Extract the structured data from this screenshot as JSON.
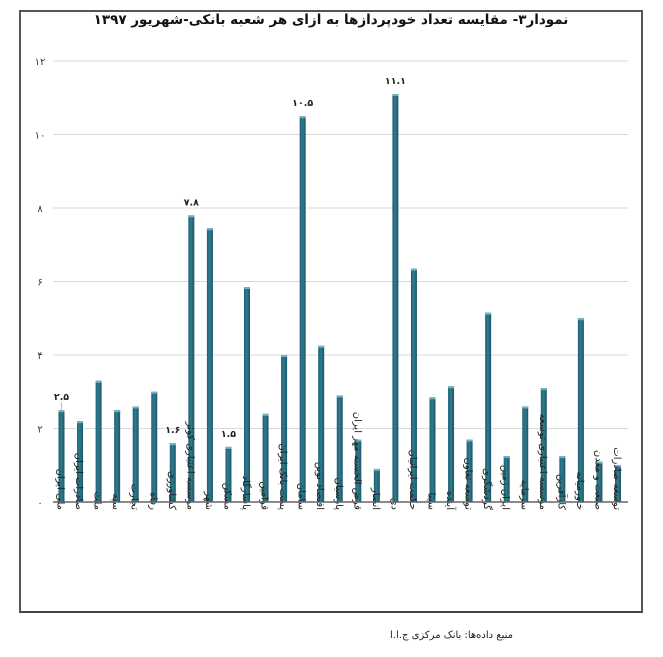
{
  "chart_data": {
    "type": "bar",
    "title": "نمودار۳- مقایسه تعداد خودپردازها به ازای هر شعبه بانکی-شهریور ۱۳۹۷",
    "xlabel": "",
    "ylabel": "",
    "ylim": [
      0,
      12
    ],
    "yticks": [
      0,
      2,
      4,
      6,
      8,
      10,
      12
    ],
    "ytick_labels": [
      "۰",
      "۲",
      "۴",
      "۶",
      "۸",
      "۱۰",
      "۱۲"
    ],
    "grid": true,
    "bar_color": "#2e7b8f",
    "categories": [
      "ملی ایران",
      "صادرات ایران",
      "ملت",
      "سپه",
      "تجارت",
      "رفاه",
      "کشاورزی",
      "موسسه اعتباری کوثر",
      "شهر",
      "مسکن",
      "پاسارگاد",
      "قوامین",
      "پست بانک ایران",
      "سامان",
      "اقتصاد نوین",
      "پارسیان",
      "قرض الحسنه مهر ایران",
      "انصار",
      "دی",
      "حکمت ایرانیان",
      "سینا",
      "آینده",
      "توسعه تعاون",
      "گردشگری",
      "ایران زمین",
      "سرمایه",
      "موسسه اعتباری توسعه",
      "کارآفرین",
      "خاورمیانه",
      "صنعت و معدن",
      "توسعه صادرات"
    ],
    "values": [
      2.5,
      2.2,
      3.3,
      2.5,
      2.6,
      3.0,
      1.6,
      7.8,
      7.45,
      1.5,
      5.85,
      2.4,
      4.0,
      10.5,
      4.25,
      2.9,
      1.7,
      0.9,
      11.1,
      6.35,
      2.85,
      3.15,
      1.7,
      5.15,
      1.25,
      2.6,
      3.1,
      1.25,
      5.0,
      1.1,
      1.0
    ],
    "data_labels": [
      {
        "index": 0,
        "text": "۲.۵"
      },
      {
        "index": 6,
        "text": "۱.۶"
      },
      {
        "index": 7,
        "text": "۷.۸"
      },
      {
        "index": 9,
        "text": "۱.۵"
      },
      {
        "index": 13,
        "text": "۱۰.۵"
      },
      {
        "index": 18,
        "text": "۱۱.۱"
      }
    ]
  },
  "source": "منبع داده‌ها: بانک مرکزی ج.ا.ا"
}
